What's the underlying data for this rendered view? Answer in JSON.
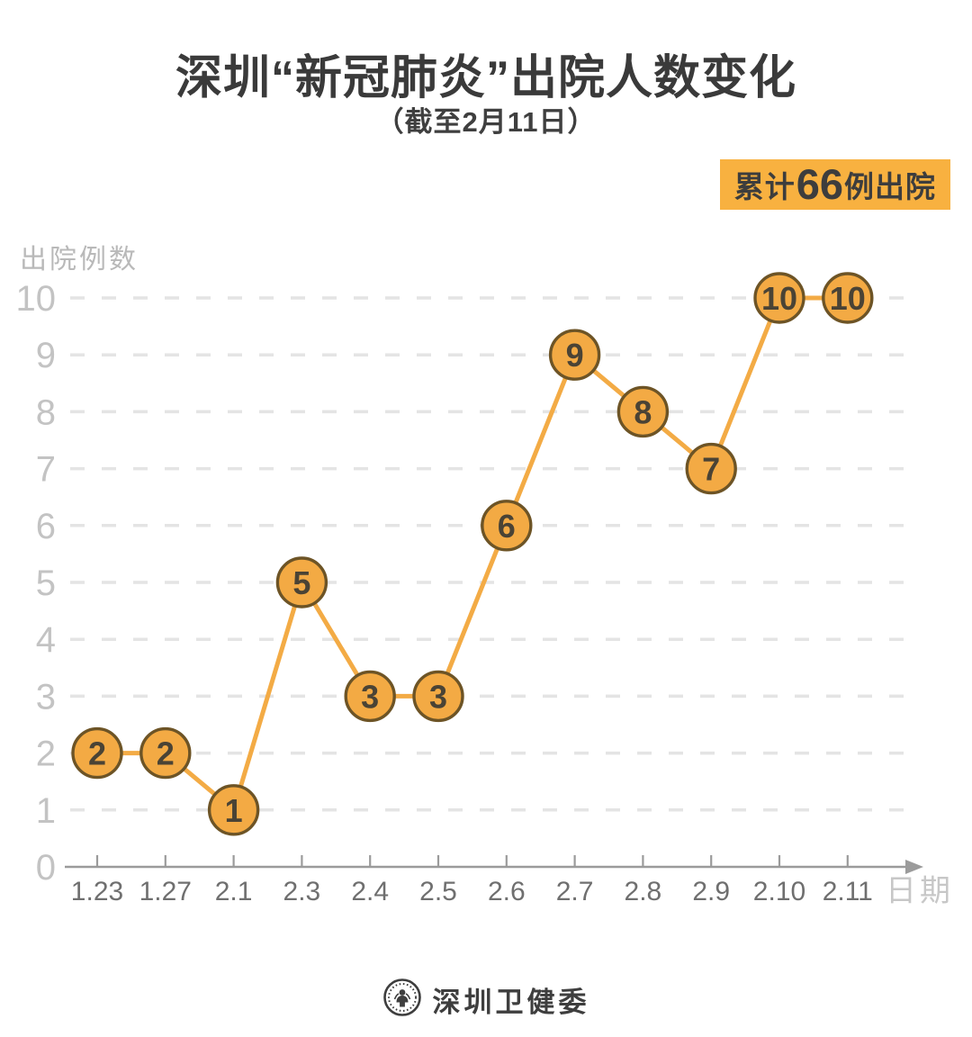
{
  "header": {
    "title": "深圳“新冠肺炎”出院人数变化",
    "subtitle": "（截至2月11日）"
  },
  "badge": {
    "prefix": "累计",
    "number": "66",
    "suffix": "例出院",
    "background_color": "#f8b140",
    "text_color": "#3d3d3d"
  },
  "chart_data": {
    "type": "line",
    "title": "深圳“新冠肺炎”出院人数变化",
    "subtitle": "（截至2月11日）",
    "categories": [
      "1.23",
      "1.27",
      "2.1",
      "2.3",
      "2.4",
      "2.5",
      "2.6",
      "2.7",
      "2.8",
      "2.9",
      "2.10",
      "2.11"
    ],
    "values": [
      2,
      2,
      1,
      5,
      3,
      3,
      6,
      9,
      8,
      7,
      10,
      10
    ],
    "xlabel": "日期",
    "ylabel": "出院例数",
    "ylim": [
      0,
      10
    ],
    "yticks": [
      0,
      1,
      2,
      3,
      4,
      5,
      6,
      7,
      8,
      9,
      10
    ],
    "grid": "horizontal-dashed",
    "legend": "none",
    "marker_style": "numbered-circle",
    "colors": {
      "line": "#f3ab45",
      "marker_fill": "#f3aa44",
      "marker_stroke": "#6d5426",
      "marker_text": "#4a4335",
      "grid": "#e4e4e4",
      "axis": "#9b9b9b",
      "y_tick_label": "#c3c3c3",
      "x_tick_label": "#6f6f6f",
      "axis_title": "#c7c7c7",
      "y_axis_title": "#b9b9b9"
    }
  },
  "footer": {
    "logo": "shenzhen-health-commission-emblem",
    "name": "深圳卫健委"
  }
}
